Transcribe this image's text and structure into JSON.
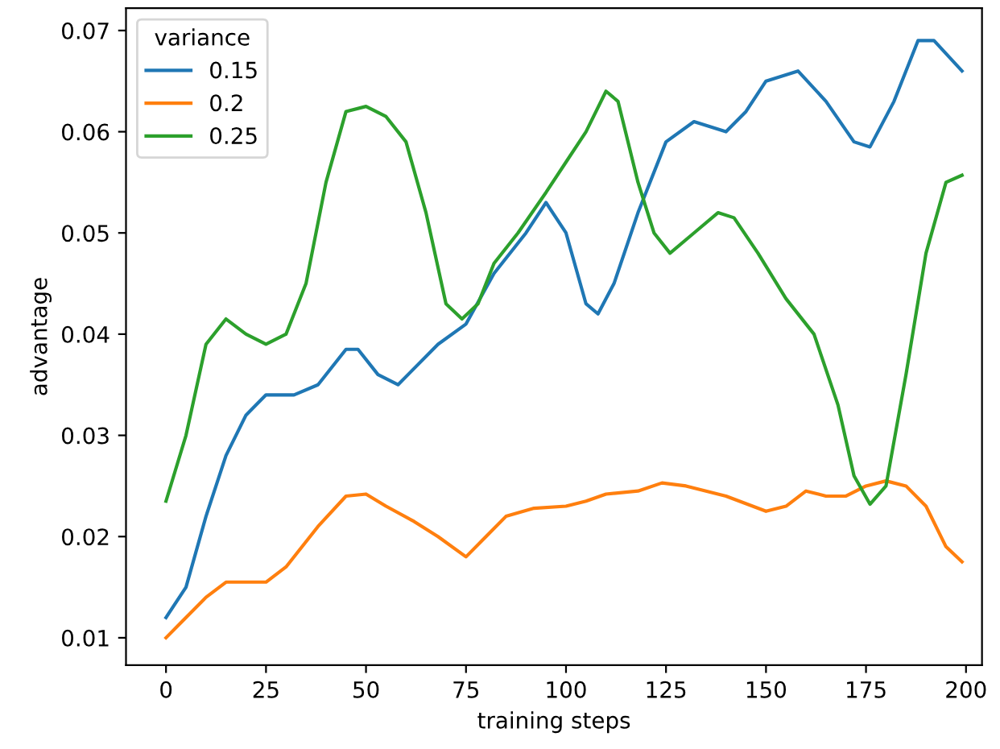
{
  "chart_data": {
    "type": "line",
    "xlabel": "training steps",
    "ylabel": "advantage",
    "legend_title": "variance",
    "legend": "top left",
    "grid": false,
    "xlim": [
      -10,
      204
    ],
    "ylim": [
      0.0073,
      0.0722
    ],
    "xticks": [
      0,
      25,
      50,
      75,
      100,
      125,
      150,
      175,
      200
    ],
    "yticks": [
      0.01,
      0.02,
      0.03,
      0.04,
      0.05,
      0.06,
      0.07
    ],
    "series": [
      {
        "name": "0.15",
        "color": "#1f77b4",
        "x": [
          0,
          5,
          10,
          15,
          20,
          25,
          32,
          38,
          45,
          48,
          53,
          58,
          63,
          68,
          75,
          82,
          90,
          95,
          100,
          105,
          108,
          112,
          118,
          125,
          132,
          140,
          145,
          150,
          158,
          165,
          172,
          176,
          182,
          188,
          192,
          199
        ],
        "values": [
          0.012,
          0.015,
          0.022,
          0.028,
          0.032,
          0.034,
          0.034,
          0.035,
          0.0385,
          0.0385,
          0.036,
          0.035,
          0.037,
          0.039,
          0.041,
          0.046,
          0.05,
          0.053,
          0.05,
          0.043,
          0.042,
          0.045,
          0.052,
          0.059,
          0.061,
          0.06,
          0.062,
          0.065,
          0.066,
          0.063,
          0.059,
          0.0585,
          0.063,
          0.069,
          0.069,
          0.066
        ]
      },
      {
        "name": "0.2",
        "color": "#ff7f0e",
        "x": [
          0,
          5,
          10,
          15,
          20,
          25,
          30,
          38,
          45,
          50,
          55,
          62,
          68,
          75,
          80,
          85,
          92,
          100,
          105,
          110,
          118,
          124,
          130,
          140,
          150,
          155,
          160,
          165,
          170,
          175,
          180,
          185,
          190,
          195,
          199
        ],
        "values": [
          0.01,
          0.012,
          0.014,
          0.0155,
          0.0155,
          0.0155,
          0.017,
          0.021,
          0.024,
          0.0242,
          0.023,
          0.0215,
          0.02,
          0.018,
          0.02,
          0.022,
          0.0228,
          0.023,
          0.0235,
          0.0242,
          0.0245,
          0.0253,
          0.025,
          0.024,
          0.0225,
          0.023,
          0.0245,
          0.024,
          0.024,
          0.025,
          0.0255,
          0.025,
          0.023,
          0.019,
          0.0175
        ]
      },
      {
        "name": "0.25",
        "color": "#2ca02c",
        "x": [
          0,
          5,
          10,
          15,
          20,
          25,
          30,
          35,
          40,
          45,
          50,
          55,
          60,
          65,
          70,
          74,
          78,
          82,
          88,
          95,
          100,
          105,
          110,
          113,
          118,
          122,
          126,
          132,
          138,
          142,
          148,
          155,
          162,
          168,
          172,
          176,
          180,
          185,
          190,
          195,
          199
        ],
        "values": [
          0.0235,
          0.03,
          0.039,
          0.0415,
          0.04,
          0.039,
          0.04,
          0.045,
          0.055,
          0.062,
          0.0625,
          0.0615,
          0.059,
          0.052,
          0.043,
          0.0415,
          0.043,
          0.047,
          0.05,
          0.054,
          0.057,
          0.06,
          0.064,
          0.063,
          0.055,
          0.05,
          0.048,
          0.05,
          0.052,
          0.0515,
          0.048,
          0.0435,
          0.04,
          0.033,
          0.026,
          0.0232,
          0.025,
          0.036,
          0.048,
          0.055,
          0.0557
        ]
      }
    ]
  }
}
